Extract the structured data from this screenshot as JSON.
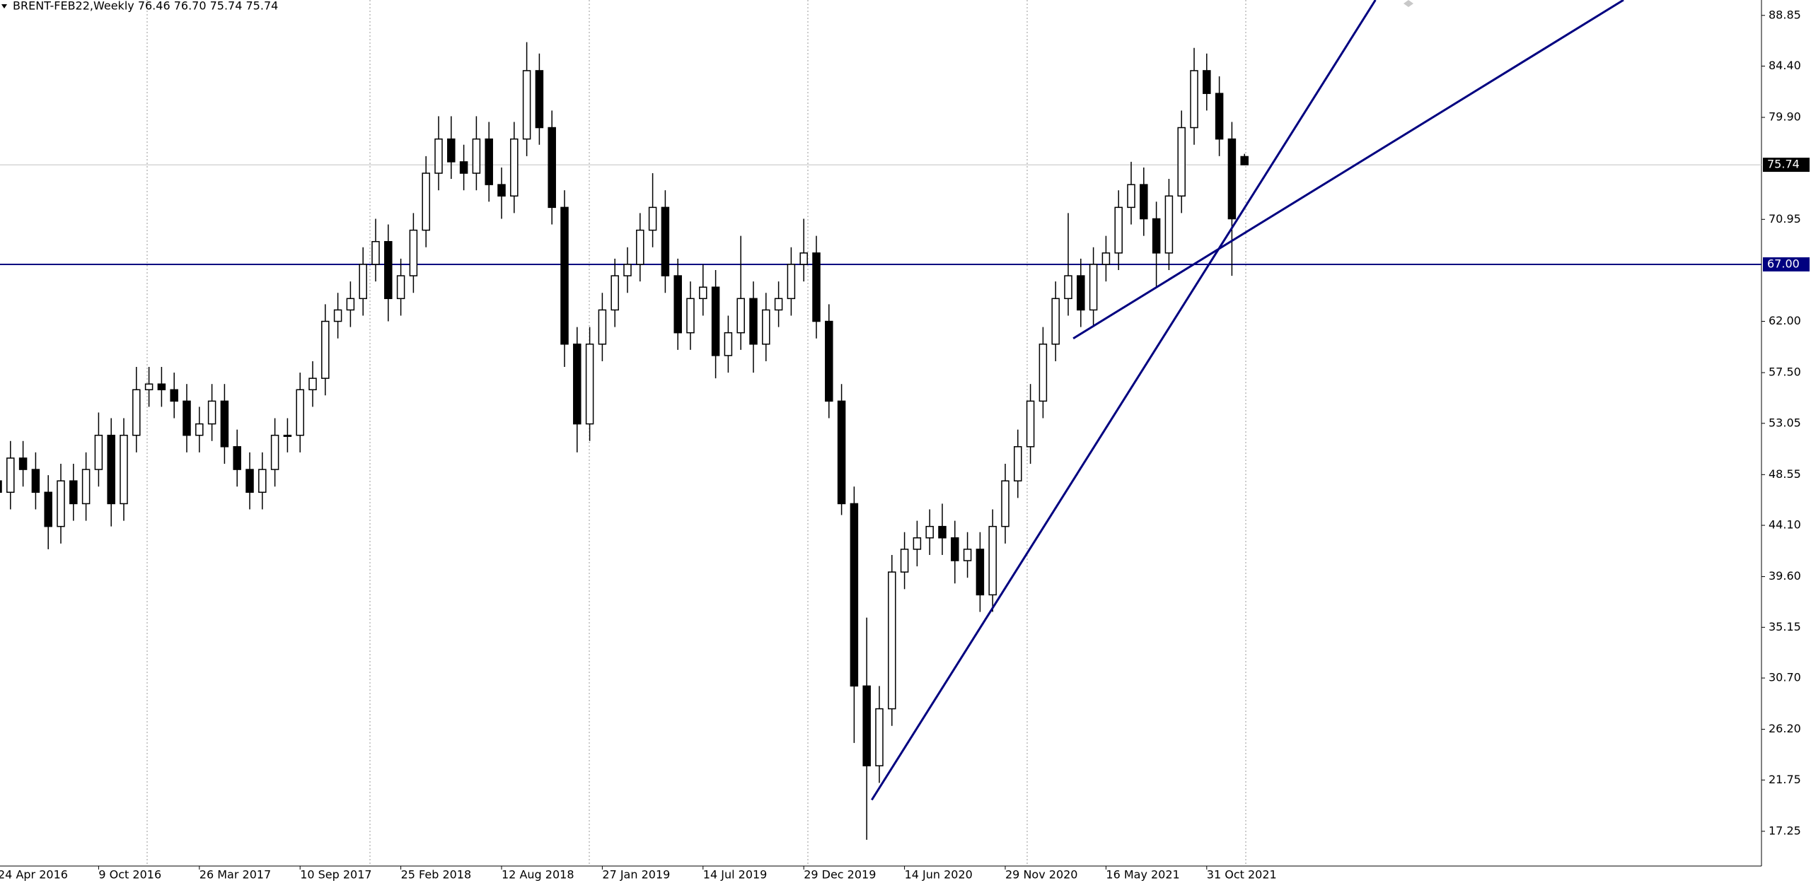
{
  "chart_data": {
    "type": "candlestick",
    "title": "BRENT-FEB22,Weekly  76.46 76.70 75.74 75.74",
    "color": "#000000",
    "categories": [
      "24 Apr 2016",
      null,
      null,
      null,
      null,
      null,
      null,
      null,
      "9 Oct 2016",
      null,
      null,
      null,
      null,
      null,
      null,
      null,
      "26 Mar 2017",
      null,
      null,
      null,
      null,
      null,
      null,
      null,
      "10 Sep 2017",
      null,
      null,
      null,
      null,
      null,
      null,
      null,
      "25 Feb 2018",
      null,
      null,
      null,
      null,
      null,
      null,
      null,
      "12 Aug 2018",
      null,
      null,
      null,
      null,
      null,
      null,
      null,
      "27 Jan 2019",
      null,
      null,
      null,
      null,
      null,
      null,
      null,
      "14 Jul 2019",
      null,
      null,
      null,
      null,
      null,
      null,
      null,
      "29 Dec 2019",
      null,
      null,
      null,
      null,
      null,
      null,
      null,
      "14 Jun 2020",
      null,
      null,
      null,
      null,
      null,
      null,
      null,
      "29 Nov 2020",
      null,
      null,
      null,
      null,
      null,
      null,
      null,
      "16 May 2021",
      null,
      null,
      null,
      null,
      null,
      null,
      null,
      "31 Oct 2021",
      null,
      null,
      null
    ],
    "open": [
      48,
      47,
      50,
      49,
      47,
      44,
      48,
      46,
      49,
      52,
      46,
      52,
      56,
      56.5,
      56,
      55,
      52,
      53,
      55,
      51,
      49,
      47,
      49,
      52,
      52,
      56,
      57,
      62,
      63,
      64,
      67,
      69,
      64,
      66,
      70,
      75,
      78,
      76,
      75,
      78,
      74,
      73,
      78,
      84,
      79,
      72,
      60,
      53,
      60,
      63,
      66,
      67,
      70,
      72,
      66,
      61,
      64,
      65,
      59,
      61,
      64,
      60,
      63,
      64,
      67,
      68,
      62,
      55,
      46,
      30,
      23,
      28,
      40,
      42,
      43,
      44,
      43,
      41,
      42,
      38,
      44,
      48,
      51,
      55,
      60,
      64,
      66,
      63,
      67,
      68,
      72,
      74,
      71,
      68,
      73,
      79,
      84,
      82,
      78,
      76.46
    ],
    "high": [
      49.5,
      51.5,
      51.5,
      50.5,
      48.5,
      49.5,
      49.5,
      50.5,
      54,
      53.5,
      53.5,
      58,
      58,
      58,
      57.5,
      56.5,
      54.5,
      56.5,
      56.5,
      52.5,
      50.5,
      50.5,
      53.5,
      53.5,
      57.5,
      58.5,
      63.5,
      64.5,
      65.5,
      68.5,
      71,
      70.5,
      67.5,
      71.5,
      76.5,
      80,
      80,
      77.5,
      80,
      79.5,
      75.5,
      79.5,
      86.5,
      85.5,
      80.5,
      73.5,
      61.5,
      61.5,
      64.5,
      67.5,
      68.5,
      71.5,
      75,
      73.5,
      67.5,
      65.5,
      67,
      66.5,
      62.5,
      69.5,
      65.5,
      64.5,
      65.5,
      68.5,
      71,
      69.5,
      63.5,
      56.5,
      47.5,
      36,
      30,
      41.5,
      43.5,
      44.5,
      45.5,
      46,
      44.5,
      43.5,
      43.5,
      45.5,
      49.5,
      52.5,
      56.5,
      61.5,
      65.5,
      71.5,
      67.5,
      68.5,
      69.5,
      73.5,
      76,
      75.5,
      72.5,
      74.5,
      80.5,
      86,
      85.5,
      83.5,
      79.5,
      76.7
    ],
    "low": [
      45.5,
      45.5,
      47.5,
      45.5,
      42,
      42.5,
      44.5,
      44.5,
      47.5,
      44,
      44.5,
      50.5,
      54.5,
      54.5,
      53.5,
      50.5,
      50.5,
      51.5,
      49.5,
      47.5,
      45.5,
      45.5,
      47.5,
      50.5,
      50.5,
      54.5,
      55.5,
      60.5,
      61.5,
      62.5,
      65.5,
      62,
      62.5,
      64.5,
      68.5,
      73.5,
      74.5,
      73.5,
      73.5,
      72.5,
      71,
      71.5,
      76.5,
      77.5,
      70.5,
      58,
      50.5,
      51.5,
      58.5,
      61.5,
      64.5,
      65.5,
      68.5,
      64.5,
      59.5,
      59.5,
      62.5,
      57,
      57.5,
      59.5,
      57.5,
      58.5,
      61.5,
      62.5,
      65.5,
      60.5,
      53.5,
      45,
      25,
      16.5,
      21.5,
      26.5,
      38.5,
      40.5,
      41.5,
      41.5,
      39,
      39.5,
      36.5,
      36.5,
      42.5,
      46.5,
      49.5,
      53.5,
      58.5,
      62.5,
      61.5,
      61.5,
      65.5,
      66.5,
      70.5,
      69.5,
      65,
      66.5,
      71.5,
      77.5,
      80.5,
      76.5,
      66,
      75.74
    ],
    "close": [
      47,
      50,
      49,
      47,
      44,
      48,
      46,
      49,
      52,
      46,
      52,
      56,
      56.5,
      56,
      55,
      52,
      53,
      55,
      51,
      49,
      47,
      49,
      52,
      52,
      56,
      57,
      62,
      63,
      64,
      67,
      69,
      64,
      66,
      70,
      75,
      78,
      76,
      75,
      78,
      74,
      73,
      78,
      84,
      79,
      72,
      60,
      53,
      60,
      63,
      66,
      67,
      70,
      72,
      66,
      61,
      64,
      65,
      59,
      61,
      64,
      60,
      63,
      64,
      67,
      68,
      62,
      55,
      46,
      30,
      23,
      28,
      40,
      42,
      43,
      44,
      43,
      41,
      42,
      38,
      44,
      48,
      51,
      55,
      60,
      64,
      66,
      63,
      67,
      68,
      72,
      74,
      71,
      68,
      73,
      79,
      84,
      82,
      78,
      71,
      75.74
    ],
    "ylim": [
      14.2,
      90.2
    ],
    "yticks": [
      88.85,
      {
        "value": 84.4,
        "label": "84.40"
      },
      {
        "value": 79.9,
        "label": "79.90"
      },
      70.95,
      {
        "value": 62,
        "label": "62.00"
      },
      {
        "value": 57.5,
        "label": "57.50"
      },
      53.05,
      48.55,
      {
        "value": 44.1,
        "label": "44.10"
      },
      {
        "value": 39.6,
        "label": "39.60"
      },
      35.15,
      {
        "value": 30.7,
        "label": "30.70"
      },
      {
        "value": 26.2,
        "label": "26.20"
      },
      21.75,
      17.25
    ],
    "hline": {
      "value": 67,
      "label": "67.00",
      "color": "#000080"
    },
    "last_price": 75.74,
    "trendlines": [
      {
        "from": [
          69.4,
          20
        ],
        "to": [
          109.4,
          90.2
        ],
        "color": "#000080"
      },
      {
        "from": [
          85.4,
          60.5
        ],
        "to": [
          129.1,
          90.2
        ],
        "color": "#000080"
      }
    ]
  }
}
